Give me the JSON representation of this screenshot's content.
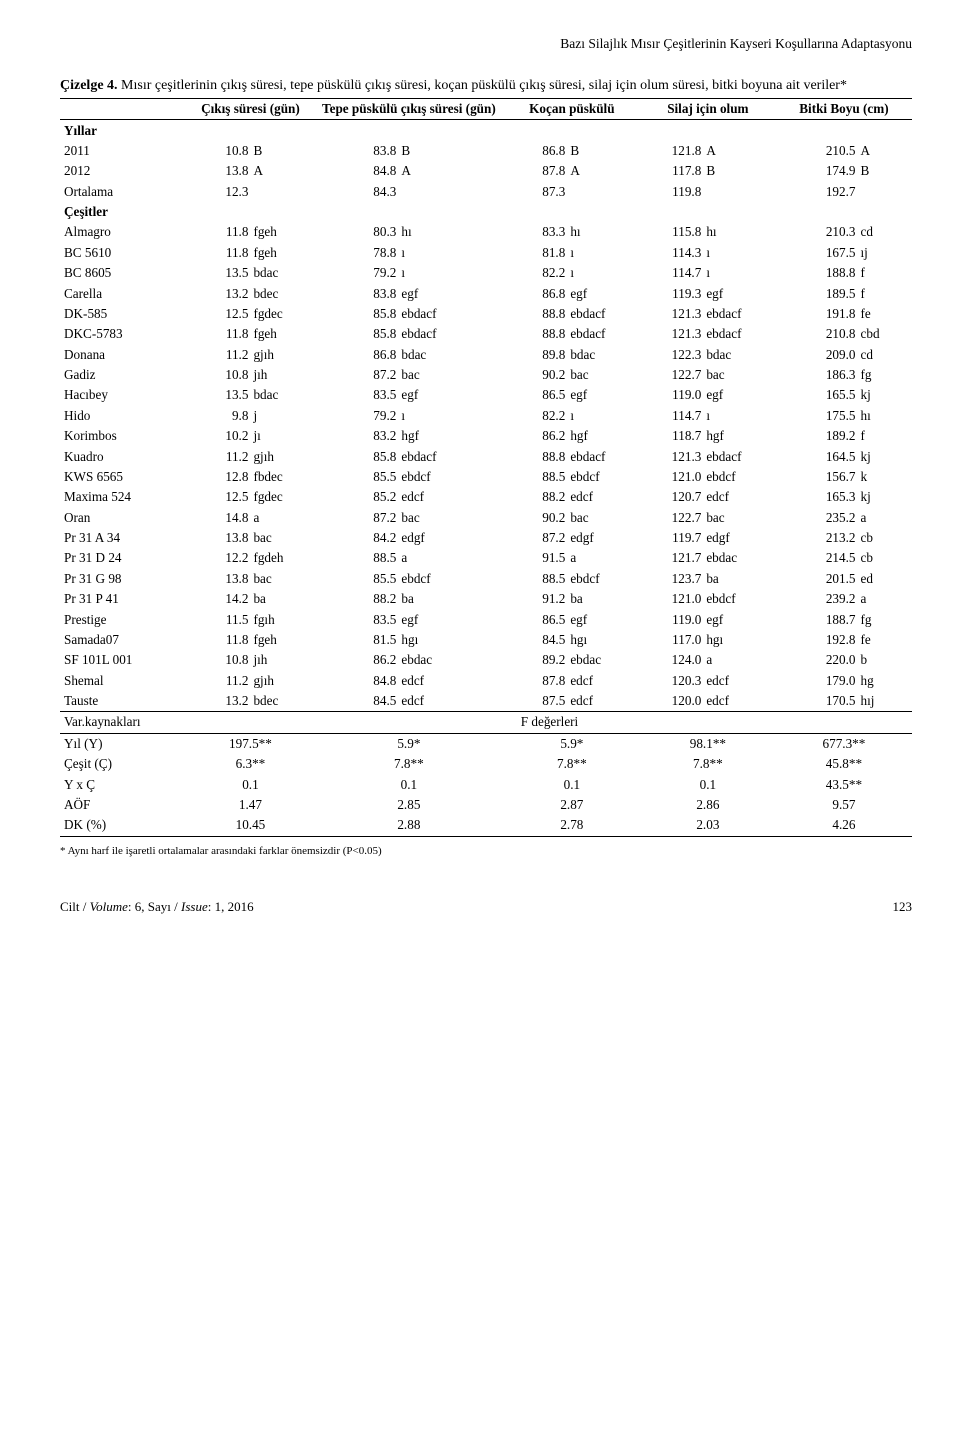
{
  "running_head": "Bazı Silajlık Mısır Çeşitlerinin Kayseri Koşullarına Adaptasyonu",
  "caption_strong": "Çizelge 4.",
  "caption_rest": " Mısır çeşitlerinin çıkış süresi, tepe püskülü çıkış süresi, koçan püskülü çıkış süresi, silaj için olum süresi, bitki boyuna ait veriler*",
  "col_headers": {
    "c1": "Çıkış süresi (gün)",
    "c2": "Tepe püskülü çıkış süresi (gün)",
    "c3": "Koçan püskülü",
    "c4": "Silaj için olum",
    "c5": "Bitki Boyu (cm)"
  },
  "section_years": "Yıllar",
  "rows_years": [
    {
      "label": "2011",
      "v": [
        [
          "10.8",
          "B"
        ],
        [
          "83.8",
          "B"
        ],
        [
          "86.8",
          "B"
        ],
        [
          "121.8",
          "A"
        ],
        [
          "210.5",
          "A"
        ]
      ]
    },
    {
      "label": "2012",
      "v": [
        [
          "13.8",
          "A"
        ],
        [
          "84.8",
          "A"
        ],
        [
          "87.8",
          "A"
        ],
        [
          "117.8",
          "B"
        ],
        [
          "174.9",
          "B"
        ]
      ]
    },
    {
      "label": "Ortalama",
      "v": [
        [
          "12.3",
          ""
        ],
        [
          "84.3",
          ""
        ],
        [
          "87.3",
          ""
        ],
        [
          "119.8",
          ""
        ],
        [
          "192.7",
          ""
        ]
      ]
    }
  ],
  "section_varieties": "Çeşitler",
  "rows_varieties": [
    {
      "label": "Almagro",
      "v": [
        [
          "11.8",
          "fgeh"
        ],
        [
          "80.3",
          "hı"
        ],
        [
          "83.3",
          "hı"
        ],
        [
          "115.8",
          "hı"
        ],
        [
          "210.3",
          "cd"
        ]
      ]
    },
    {
      "label": "BC 5610",
      "v": [
        [
          "11.8",
          "fgeh"
        ],
        [
          "78.8",
          "ı"
        ],
        [
          "81.8",
          "ı"
        ],
        [
          "114.3",
          "ı"
        ],
        [
          "167.5",
          "ıj"
        ]
      ]
    },
    {
      "label": "BC 8605",
      "v": [
        [
          "13.5",
          "bdac"
        ],
        [
          "79.2",
          "ı"
        ],
        [
          "82.2",
          "ı"
        ],
        [
          "114.7",
          "ı"
        ],
        [
          "188.8",
          "f"
        ]
      ]
    },
    {
      "label": "Carella",
      "v": [
        [
          "13.2",
          "bdec"
        ],
        [
          "83.8",
          "egf"
        ],
        [
          "86.8",
          "egf"
        ],
        [
          "119.3",
          "egf"
        ],
        [
          "189.5",
          "f"
        ]
      ]
    },
    {
      "label": "DK-585",
      "v": [
        [
          "12.5",
          "fgdec"
        ],
        [
          "85.8",
          "ebdacf"
        ],
        [
          "88.8",
          "ebdacf"
        ],
        [
          "121.3",
          "ebdacf"
        ],
        [
          "191.8",
          "fe"
        ]
      ]
    },
    {
      "label": "DKC-5783",
      "v": [
        [
          "11.8",
          "fgeh"
        ],
        [
          "85.8",
          "ebdacf"
        ],
        [
          "88.8",
          "ebdacf"
        ],
        [
          "121.3",
          "ebdacf"
        ],
        [
          "210.8",
          "cbd"
        ]
      ]
    },
    {
      "label": "Donana",
      "v": [
        [
          "11.2",
          "gjıh"
        ],
        [
          "86.8",
          "bdac"
        ],
        [
          "89.8",
          "bdac"
        ],
        [
          "122.3",
          "bdac"
        ],
        [
          "209.0",
          "cd"
        ]
      ]
    },
    {
      "label": "Gadiz",
      "v": [
        [
          "10.8",
          "jıh"
        ],
        [
          "87.2",
          "bac"
        ],
        [
          "90.2",
          "bac"
        ],
        [
          "122.7",
          "bac"
        ],
        [
          "186.3",
          "fg"
        ]
      ]
    },
    {
      "label": "Hacıbey",
      "v": [
        [
          "13.5",
          "bdac"
        ],
        [
          "83.5",
          "egf"
        ],
        [
          "86.5",
          "egf"
        ],
        [
          "119.0",
          "egf"
        ],
        [
          "165.5",
          "kj"
        ]
      ]
    },
    {
      "label": "Hido",
      "v": [
        [
          "9.8",
          "j"
        ],
        [
          "79.2",
          "ı"
        ],
        [
          "82.2",
          "ı"
        ],
        [
          "114.7",
          "ı"
        ],
        [
          "175.5",
          "hı"
        ]
      ]
    },
    {
      "label": "Korimbos",
      "v": [
        [
          "10.2",
          "jı"
        ],
        [
          "83.2",
          "hgf"
        ],
        [
          "86.2",
          "hgf"
        ],
        [
          "118.7",
          "hgf"
        ],
        [
          "189.2",
          "f"
        ]
      ]
    },
    {
      "label": "Kuadro",
      "v": [
        [
          "11.2",
          "gjıh"
        ],
        [
          "85.8",
          "ebdacf"
        ],
        [
          "88.8",
          "ebdacf"
        ],
        [
          "121.3",
          "ebdacf"
        ],
        [
          "164.5",
          "kj"
        ]
      ]
    },
    {
      "label": "KWS 6565",
      "v": [
        [
          "12.8",
          "fbdec"
        ],
        [
          "85.5",
          "ebdcf"
        ],
        [
          "88.5",
          "ebdcf"
        ],
        [
          "121.0",
          "ebdcf"
        ],
        [
          "156.7",
          "k"
        ]
      ]
    },
    {
      "label": "Maxima 524",
      "v": [
        [
          "12.5",
          "fgdec"
        ],
        [
          "85.2",
          "edcf"
        ],
        [
          "88.2",
          "edcf"
        ],
        [
          "120.7",
          "edcf"
        ],
        [
          "165.3",
          "kj"
        ]
      ]
    },
    {
      "label": "Oran",
      "v": [
        [
          "14.8",
          "a"
        ],
        [
          "87.2",
          "bac"
        ],
        [
          "90.2",
          "bac"
        ],
        [
          "122.7",
          "bac"
        ],
        [
          "235.2",
          "a"
        ]
      ]
    },
    {
      "label": "Pr 31 A 34",
      "v": [
        [
          "13.8",
          "bac"
        ],
        [
          "84.2",
          "edgf"
        ],
        [
          "87.2",
          "edgf"
        ],
        [
          "119.7",
          "edgf"
        ],
        [
          "213.2",
          "cb"
        ]
      ]
    },
    {
      "label": "Pr 31 D 24",
      "v": [
        [
          "12.2",
          "fgdeh"
        ],
        [
          "88.5",
          "a"
        ],
        [
          "91.5",
          "a"
        ],
        [
          "121.7",
          "ebdac"
        ],
        [
          "214.5",
          "cb"
        ]
      ]
    },
    {
      "label": "Pr 31 G 98",
      "v": [
        [
          "13.8",
          "bac"
        ],
        [
          "85.5",
          "ebdcf"
        ],
        [
          "88.5",
          "ebdcf"
        ],
        [
          "123.7",
          "ba"
        ],
        [
          "201.5",
          "ed"
        ]
      ]
    },
    {
      "label": "Pr 31 P 41",
      "v": [
        [
          "14.2",
          "ba"
        ],
        [
          "88.2",
          "ba"
        ],
        [
          "91.2",
          "ba"
        ],
        [
          "121.0",
          "ebdcf"
        ],
        [
          "239.2",
          "a"
        ]
      ]
    },
    {
      "label": "Prestige",
      "v": [
        [
          "11.5",
          "fgıh"
        ],
        [
          "83.5",
          "egf"
        ],
        [
          "86.5",
          "egf"
        ],
        [
          "119.0",
          "egf"
        ],
        [
          "188.7",
          "fg"
        ]
      ]
    },
    {
      "label": "Samada07",
      "v": [
        [
          "11.8",
          "fgeh"
        ],
        [
          "81.5",
          "hgı"
        ],
        [
          "84.5",
          "hgı"
        ],
        [
          "117.0",
          "hgı"
        ],
        [
          "192.8",
          "fe"
        ]
      ]
    },
    {
      "label": "SF 101L 001",
      "v": [
        [
          "10.8",
          "jıh"
        ],
        [
          "86.2",
          "ebdac"
        ],
        [
          "89.2",
          "ebdac"
        ],
        [
          "124.0",
          "a"
        ],
        [
          "220.0",
          "b"
        ]
      ]
    },
    {
      "label": "Shemal",
      "v": [
        [
          "11.2",
          "gjıh"
        ],
        [
          "84.8",
          "edcf"
        ],
        [
          "87.8",
          "edcf"
        ],
        [
          "120.3",
          "edcf"
        ],
        [
          "179.0",
          "hg"
        ]
      ]
    },
    {
      "label": "Tauste",
      "v": [
        [
          "13.2",
          "bdec"
        ],
        [
          "84.5",
          "edcf"
        ],
        [
          "87.5",
          "edcf"
        ],
        [
          "120.0",
          "edcf"
        ],
        [
          "170.5",
          "hıj"
        ]
      ]
    }
  ],
  "section_var": "Var.kaynakları",
  "f_header": "F değerleri",
  "rows_anova": [
    {
      "label": "Yıl (Y)",
      "v": [
        "197.5**",
        "5.9*",
        "5.9*",
        "98.1**",
        "677.3**"
      ]
    },
    {
      "label": "Çeşit (Ç)",
      "v": [
        "6.3**",
        "7.8**",
        "7.8**",
        "7.8**",
        "45.8**"
      ]
    },
    {
      "label": "Y x Ç",
      "v": [
        "0.1",
        "0.1",
        "0.1",
        "0.1",
        "43.5**"
      ]
    },
    {
      "label": "AÖF",
      "v": [
        "1.47",
        "2.85",
        "2.87",
        "2.86",
        "9.57"
      ]
    },
    {
      "label": "DK (%)",
      "v": [
        "10.45",
        "2.88",
        "2.78",
        "2.03",
        "4.26"
      ]
    }
  ],
  "footnote": "* Aynı harf ile işaretli ortalamalar arasındaki farklar önemsizdir (P<0.05)",
  "footer_vol_prefix": "Cilt / ",
  "footer_vol_italic": "Volume",
  "footer_vol_mid": ": 6, Sayı / ",
  "footer_issue_italic": "Issue",
  "footer_vol_suffix": ": 1, 2016",
  "footer_page": "123"
}
